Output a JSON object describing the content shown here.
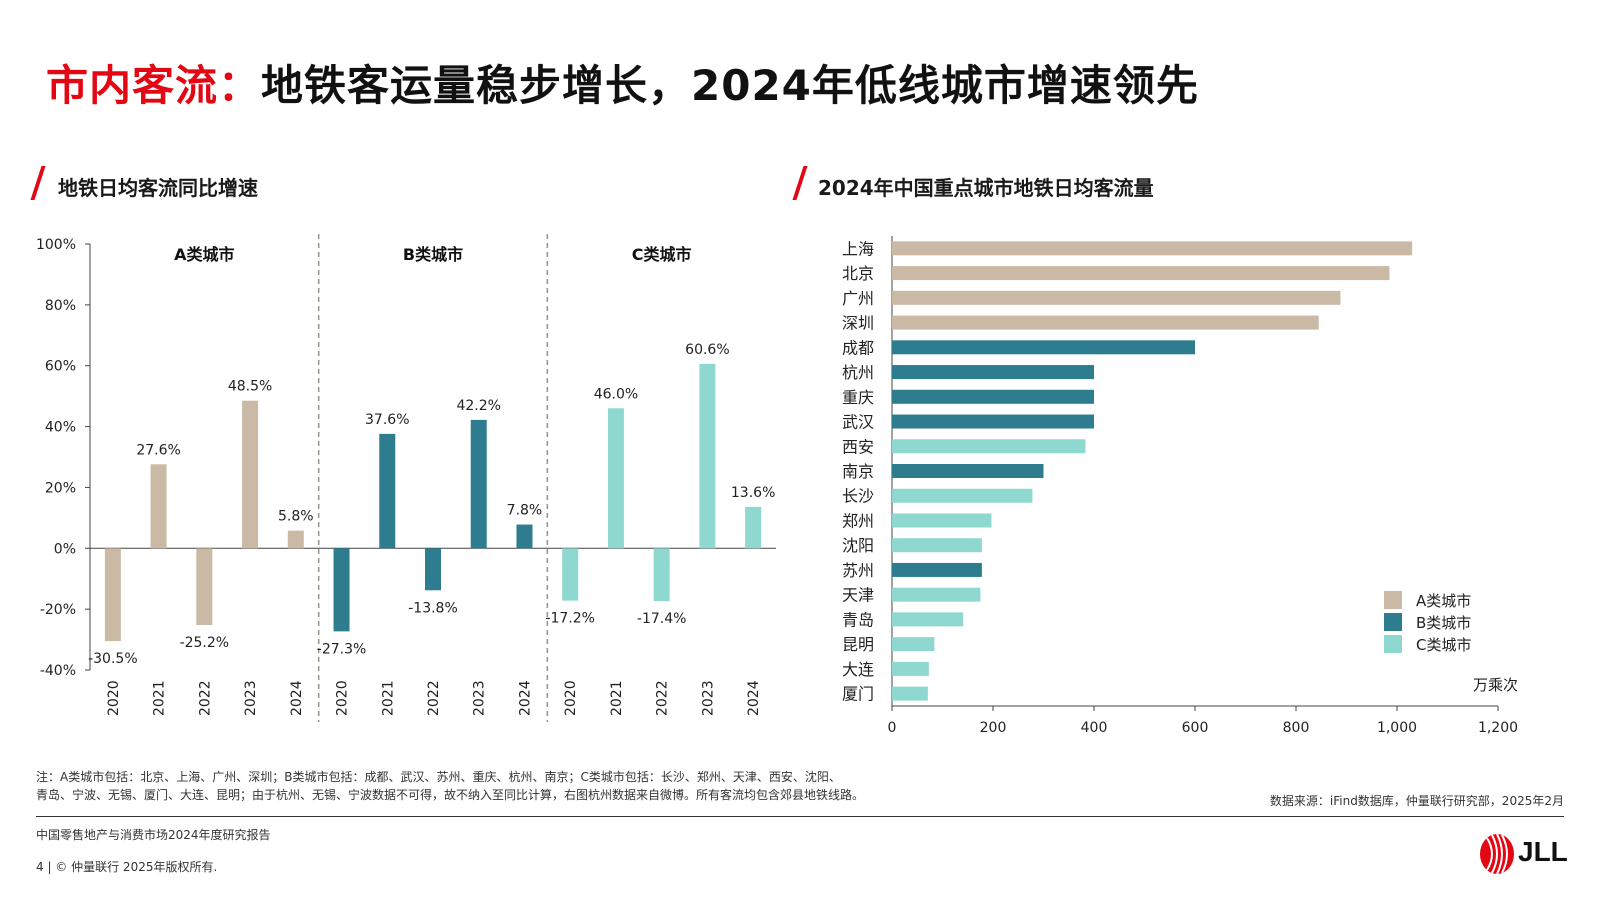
{
  "header": {
    "title_red": "市内客流：",
    "title_dark": "地铁客运量稳步增长，2024年低线城市增速领先"
  },
  "left_subtitle": "地铁日均客流同比增速",
  "right_subtitle": "2024年中国重点城市地铁日均客流量",
  "colors": {
    "A": "#c9b9a5",
    "B": "#2e7d8e",
    "C": "#8fd8cf",
    "accent": "#e30613"
  },
  "chart_data": [
    {
      "type": "bar",
      "title": "地铁日均客流同比增速",
      "ylim": [
        -40,
        100
      ],
      "yticks": [
        "100%",
        "80%",
        "60%",
        "40%",
        "20%",
        "0%",
        "-20%",
        "-40%"
      ],
      "ytick_values": [
        100,
        80,
        60,
        40,
        20,
        0,
        -20,
        -40
      ],
      "groups": [
        {
          "name": "A类城市",
          "key": "A",
          "categories": [
            "2020",
            "2021",
            "2022",
            "2023",
            "2024"
          ],
          "values": [
            -30.5,
            27.6,
            -25.2,
            48.5,
            5.8
          ],
          "labels": [
            "-30.5%",
            "27.6%",
            "-25.2%",
            "48.5%",
            "5.8%"
          ]
        },
        {
          "name": "B类城市",
          "key": "B",
          "categories": [
            "2020",
            "2021",
            "2022",
            "2023",
            "2024"
          ],
          "values": [
            -27.3,
            37.6,
            -13.8,
            42.2,
            7.8
          ],
          "labels": [
            "-27.3%",
            "37.6%",
            "-13.8%",
            "42.2%",
            "7.8%"
          ]
        },
        {
          "name": "C类城市",
          "key": "C",
          "categories": [
            "2020",
            "2021",
            "2022",
            "2023",
            "2024"
          ],
          "values": [
            -17.2,
            46.0,
            -17.4,
            60.6,
            13.6
          ],
          "labels": [
            "-17.2%",
            "46.0%",
            "-17.4%",
            "60.6%",
            "13.6%"
          ]
        }
      ]
    },
    {
      "type": "bar",
      "orientation": "horizontal",
      "title": "2024年中国重点城市地铁日均客流量",
      "unit": "万乘次",
      "xlim": [
        0,
        1200
      ],
      "xticks": [
        "0",
        "200",
        "400",
        "600",
        "800",
        "1,000",
        "1,200"
      ],
      "xtick_values": [
        0,
        200,
        400,
        600,
        800,
        1000,
        1200
      ],
      "categories": [
        "上海",
        "北京",
        "广州",
        "深圳",
        "成都",
        "杭州",
        "重庆",
        "武汉",
        "西安",
        "南京",
        "长沙",
        "郑州",
        "沈阳",
        "苏州",
        "天津",
        "青岛",
        "昆明",
        "大连",
        "厦门"
      ],
      "values": [
        1030,
        985,
        888,
        845,
        600,
        400,
        400,
        400,
        383,
        300,
        278,
        197,
        178,
        178,
        175,
        141,
        84,
        73,
        71
      ],
      "groups": [
        "A",
        "A",
        "A",
        "A",
        "B",
        "B",
        "B",
        "B",
        "C",
        "B",
        "C",
        "C",
        "C",
        "B",
        "C",
        "C",
        "C",
        "C",
        "C"
      ],
      "legend": [
        {
          "key": "A",
          "label": "A类城市"
        },
        {
          "key": "B",
          "label": "B类城市"
        },
        {
          "key": "C",
          "label": "C类城市"
        }
      ],
      "legend_position": "bottom-right"
    }
  ],
  "note_line1": "注：A类城市包括：北京、上海、广州、深圳；B类城市包括：成都、武汉、苏州、重庆、杭州、南京；C类城市包括：长沙、郑州、天津、西安、沈阳、",
  "note_line2": "青岛、宁波、无锡、厦门、大连、昆明；由于杭州、无锡、宁波数据不可得，故不纳入至同比计算，右图杭州数据来自微博。所有客流均包含郊县地铁线路。",
  "source": "数据来源：iFind数据库，仲量联行研究部，2025年2月",
  "footer_report": "中国零售地产与消费市场2024年度研究报告",
  "footer_copyright": "4 | © 仲量联行 2025年版权所有.",
  "logo_text": "JLL"
}
